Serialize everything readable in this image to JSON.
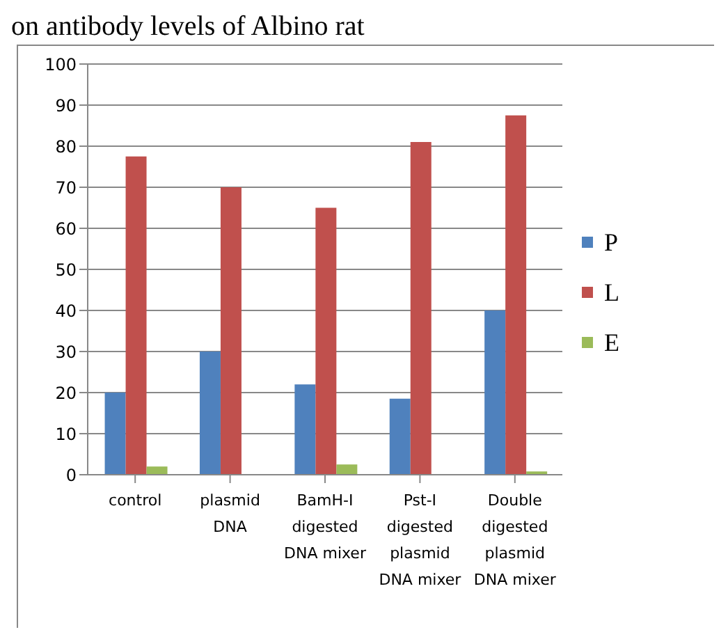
{
  "chart_data": {
    "type": "bar",
    "title": "on antibody levels of Albino rat",
    "categories": [
      "control",
      "plasmid\nDNA",
      "BamH-I\ndigested\nDNA mixer",
      "Pst-I\ndigested\nplasmid\nDNA mixer",
      "Double\ndigested\nplasmid\nDNA mixer"
    ],
    "series": [
      {
        "name": "P",
        "color": "#4f81bd",
        "values": [
          20,
          30,
          22,
          18.5,
          40
        ]
      },
      {
        "name": "L",
        "color": "#c0504d",
        "values": [
          77.5,
          70,
          65,
          81,
          87.5
        ]
      },
      {
        "name": "E",
        "color": "#9bbb59",
        "values": [
          2,
          0,
          2.5,
          0,
          0.8
        ]
      }
    ],
    "ylim": [
      0,
      100
    ],
    "yticks": [
      0,
      10,
      20,
      30,
      40,
      50,
      60,
      70,
      80,
      90,
      100
    ],
    "grid": "y",
    "legend": "right"
  }
}
